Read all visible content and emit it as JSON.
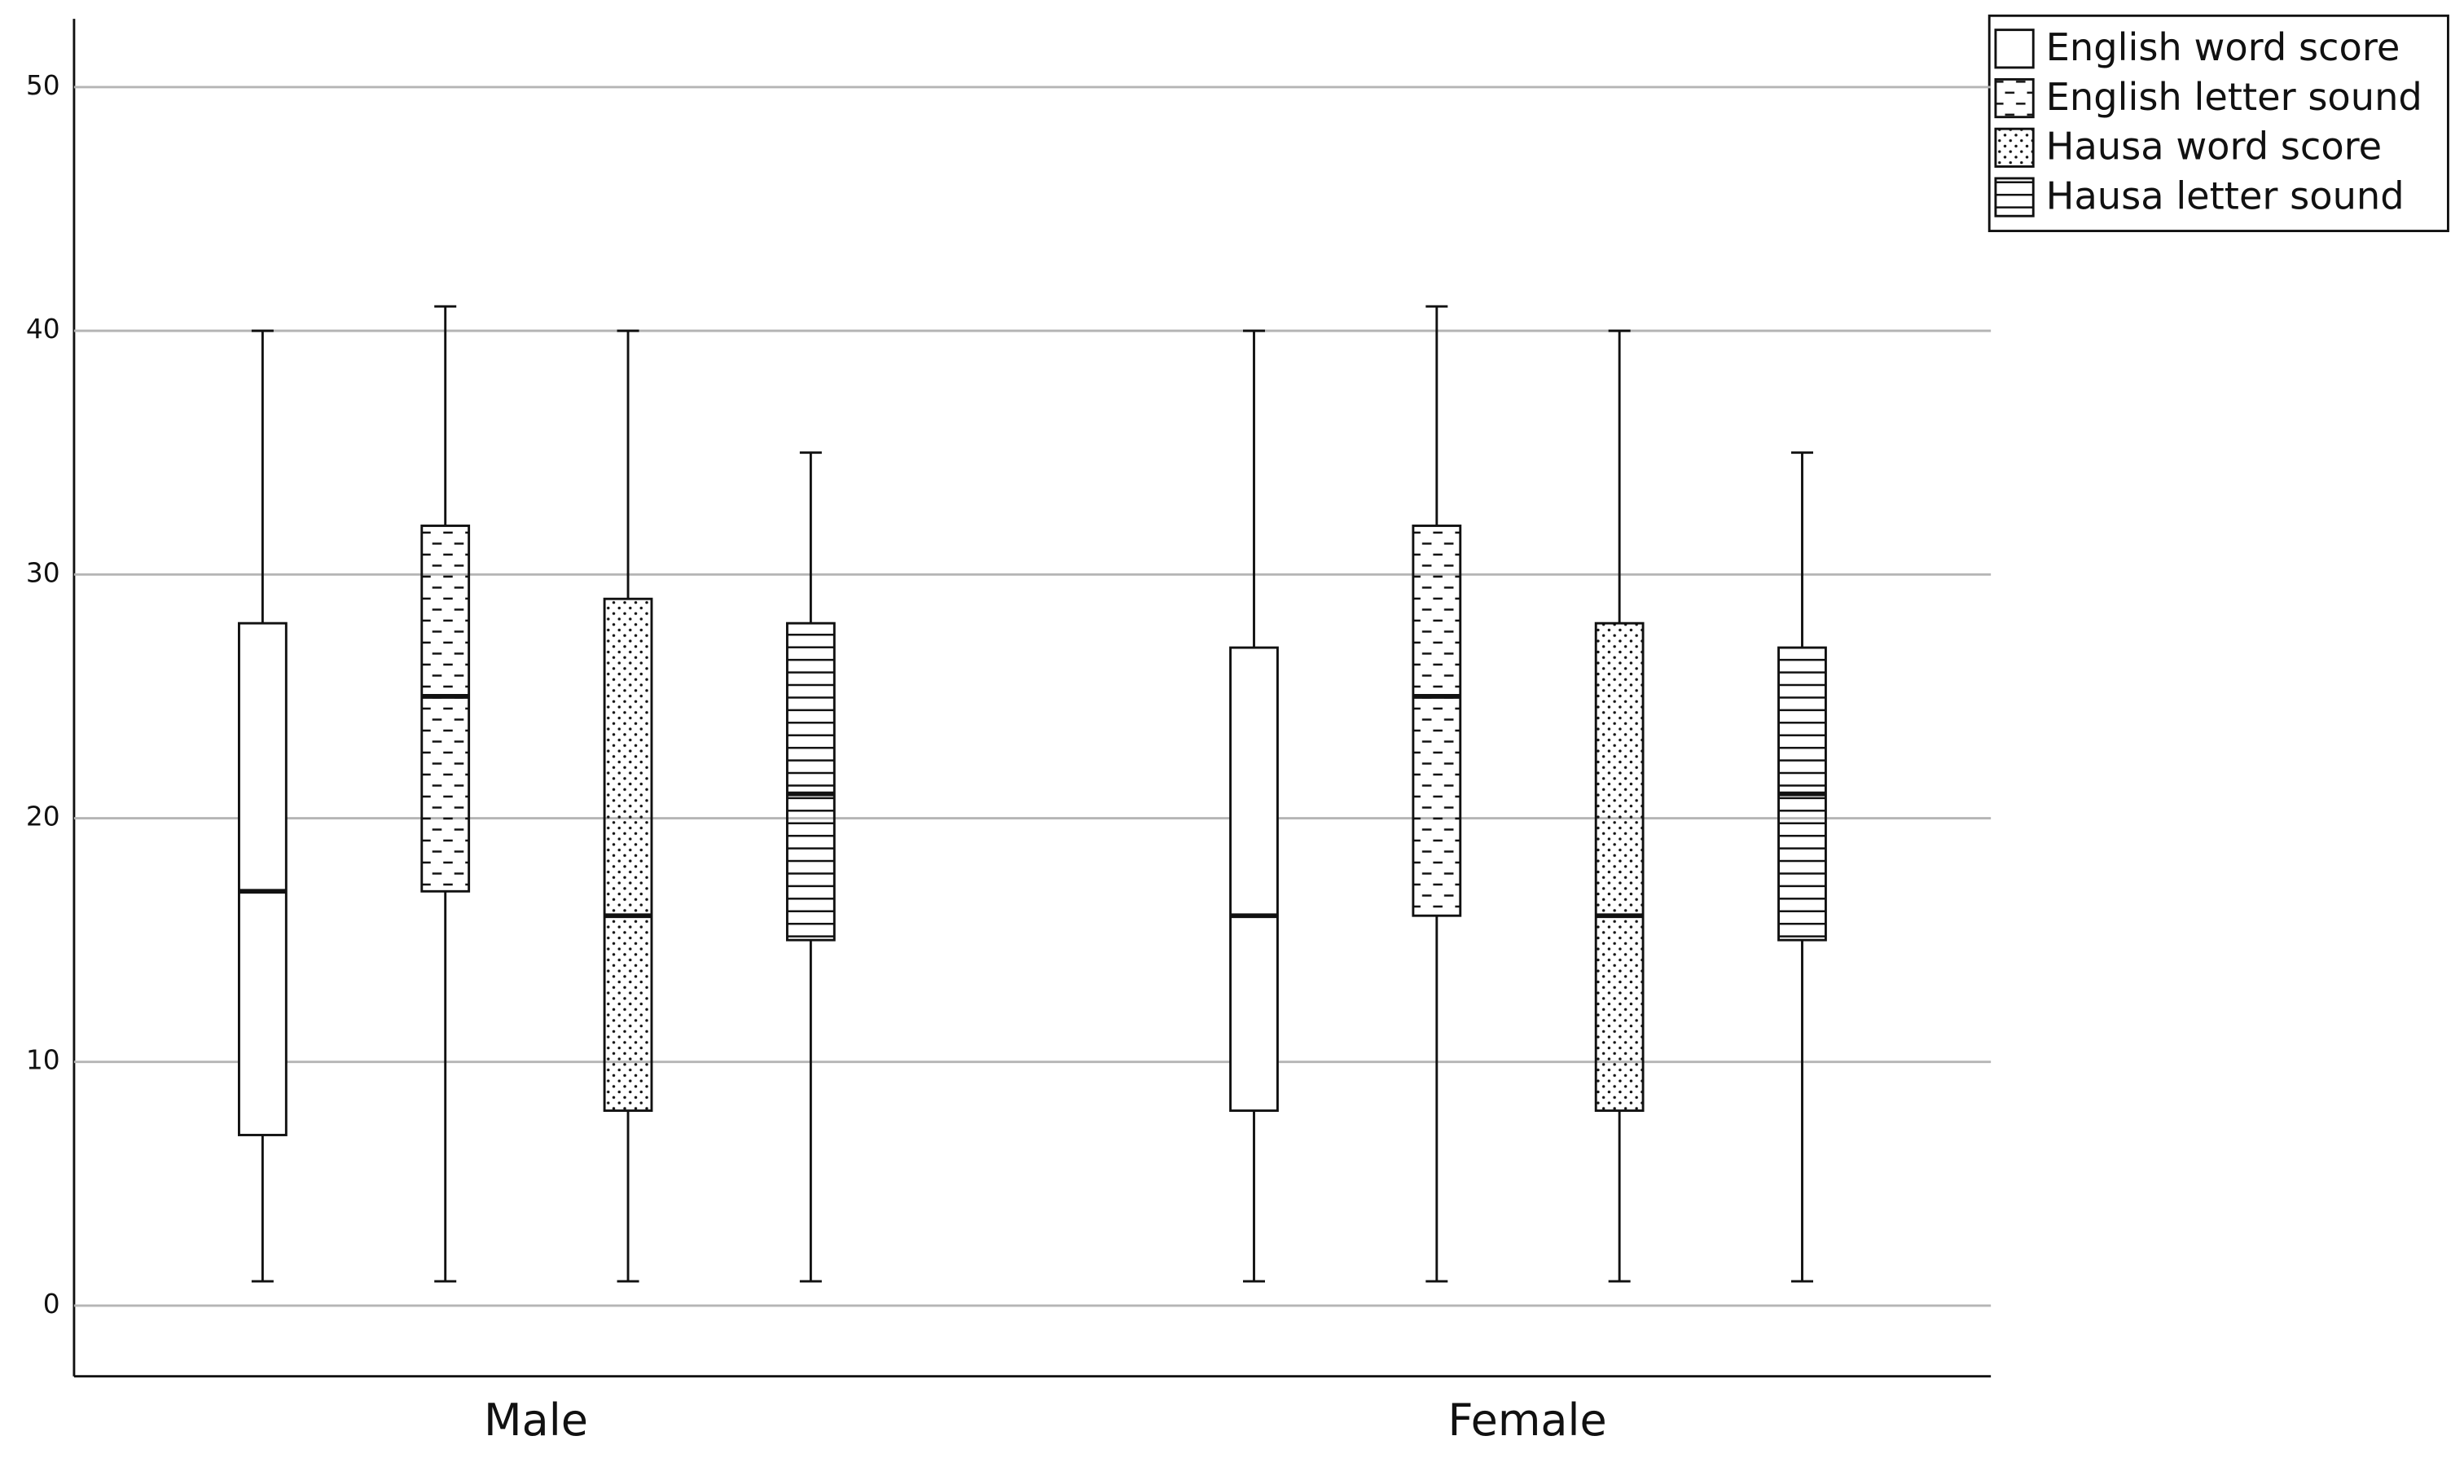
{
  "chart_data": {
    "type": "box",
    "categories": [
      "Male",
      "Female"
    ],
    "series": [
      {
        "name": "English word score",
        "pattern": "none",
        "min": [
          1,
          1
        ],
        "q1": [
          7,
          8
        ],
        "median": [
          17,
          16
        ],
        "q3": [
          28,
          27
        ],
        "max": [
          40,
          40
        ]
      },
      {
        "name": "English letter sound",
        "pattern": "dashes",
        "min": [
          1,
          1
        ],
        "q1": [
          17,
          16
        ],
        "median": [
          25,
          25
        ],
        "q3": [
          32,
          32
        ],
        "max": [
          41,
          41
        ]
      },
      {
        "name": "Hausa word score",
        "pattern": "dots",
        "min": [
          1,
          1
        ],
        "q1": [
          8,
          8
        ],
        "median": [
          16,
          16
        ],
        "q3": [
          29,
          28
        ],
        "max": [
          40,
          40
        ]
      },
      {
        "name": "Hausa letter sound",
        "pattern": "hlines",
        "min": [
          1,
          1
        ],
        "q1": [
          15,
          15
        ],
        "median": [
          21,
          21
        ],
        "q3": [
          28,
          27
        ],
        "max": [
          35,
          35
        ]
      }
    ],
    "ylim": [
      -2.9,
      52.8
    ],
    "yticks": [
      0,
      10,
      20,
      30,
      40,
      50
    ],
    "grid": true,
    "legend": "top-right"
  }
}
